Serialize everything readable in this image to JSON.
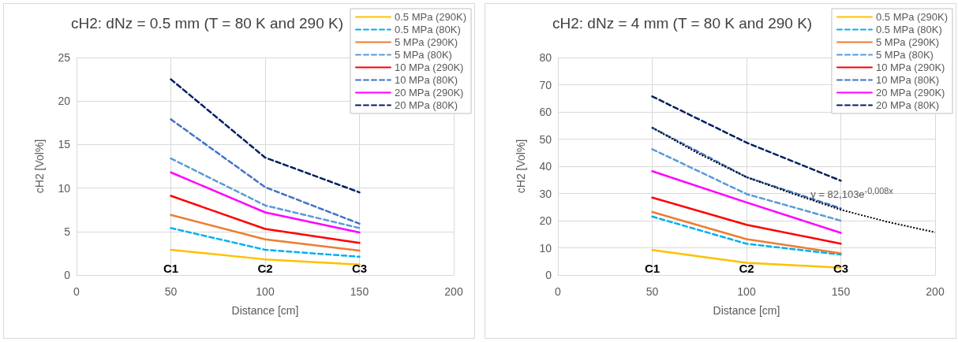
{
  "chart_data": [
    {
      "type": "line",
      "title": "cH2: dNz = 0.5 mm (T = 80 K and 290 K)",
      "xlabel": "Distance [cm]",
      "ylabel": "cH2 [Vol%]",
      "x": [
        50,
        100,
        150
      ],
      "xlim": [
        0,
        200
      ],
      "xticks": [
        0,
        50,
        100,
        150,
        200
      ],
      "ylim": [
        0,
        25
      ],
      "yticks": [
        0,
        5,
        10,
        15,
        20,
        25
      ],
      "grid": true,
      "legend": "top right",
      "marker": "none",
      "annotations": [
        "C1",
        "C2",
        "C3"
      ],
      "series": [
        {
          "name": "0.5 MPa (290K)",
          "color": "#ffc000",
          "line_style": "solid",
          "values": [
            2.9,
            1.8,
            1.2
          ]
        },
        {
          "name": "0.5 MPa (80K)",
          "color": "#00b0f0",
          "line_style": "dashed",
          "values": [
            5.4,
            2.9,
            2.1
          ]
        },
        {
          "name": "5 MPa (290K)",
          "color": "#ed7d31",
          "line_style": "solid",
          "values": [
            6.9,
            4.1,
            2.8
          ]
        },
        {
          "name": "5 MPa (80K)",
          "color": "#5b9bd5",
          "line_style": "dashed",
          "values": [
            13.4,
            8.0,
            5.4
          ]
        },
        {
          "name": "10 MPa (290K)",
          "color": "#ff0000",
          "line_style": "solid",
          "values": [
            9.1,
            5.3,
            3.7
          ]
        },
        {
          "name": "10 MPa (80K)",
          "color": "#4472c4",
          "line_style": "dashed",
          "values": [
            17.9,
            10.1,
            5.9
          ]
        },
        {
          "name": "20 MPa (290K)",
          "color": "#ff00ff",
          "line_style": "solid",
          "values": [
            11.8,
            7.2,
            4.9
          ]
        },
        {
          "name": "20 MPa (80K)",
          "color": "#002060",
          "line_style": "dashed",
          "values": [
            22.5,
            13.5,
            9.5
          ]
        }
      ]
    },
    {
      "type": "line",
      "title": "cH2: dNz = 4 mm (T = 80 K and 290 K)",
      "xlabel": "Distance [cm]",
      "ylabel": "cH2 [Vol%]",
      "x": [
        50,
        100,
        150
      ],
      "xlim": [
        0,
        200
      ],
      "xticks": [
        0,
        50,
        100,
        150,
        200
      ],
      "ylim": [
        0,
        80
      ],
      "yticks": [
        0,
        10,
        20,
        30,
        40,
        50,
        60,
        70,
        80
      ],
      "grid": true,
      "legend": "top right",
      "marker": "none",
      "annotations": [
        "C1",
        "C2",
        "C3",
        "y = 82,103e$^{-0,008x}$"
      ],
      "series": [
        {
          "name": "0.5 MPa (290K)",
          "color": "#ffc000",
          "line_style": "solid",
          "values": [
            9.2,
            4.5,
            2.7
          ]
        },
        {
          "name": "0.5 MPa (80K)",
          "color": "#00b0f0",
          "line_style": "dashed",
          "values": [
            21.5,
            11.5,
            7.5
          ]
        },
        {
          "name": "5 MPa (290K)",
          "color": "#ed7d31",
          "line_style": "solid",
          "values": [
            23.2,
            13.2,
            8.0
          ]
        },
        {
          "name": "5 MPa (80K)",
          "color": "#5b9bd5",
          "line_style": "dashed",
          "values": [
            46.3,
            29.8,
            20.0
          ]
        },
        {
          "name": "10 MPa (290K)",
          "color": "#ff0000",
          "line_style": "solid",
          "values": [
            28.5,
            18.5,
            11.5
          ]
        },
        {
          "name": "10 MPa (80K)",
          "color": "#4472c4",
          "line_style": "dashed",
          "values": [
            54.2,
            36.0,
            24.5
          ]
        },
        {
          "name": "20 MPa (290K)",
          "color": "#ff00ff",
          "line_style": "solid",
          "values": [
            38.2,
            26.7,
            15.5
          ]
        },
        {
          "name": "20 MPa (80K)",
          "color": "#002060",
          "line_style": "dashed",
          "values": [
            65.7,
            48.7,
            34.7
          ]
        },
        {
          "type": "line",
          "color": "#000000",
          "line_style": "dotted",
          "x": [
            50,
            75,
            100,
            125,
            150,
            175,
            200
          ],
          "values": [
            54.2,
            44.5,
            36.0,
            29.8,
            24.0,
            19.5,
            15.7
          ]
        }
      ]
    }
  ]
}
